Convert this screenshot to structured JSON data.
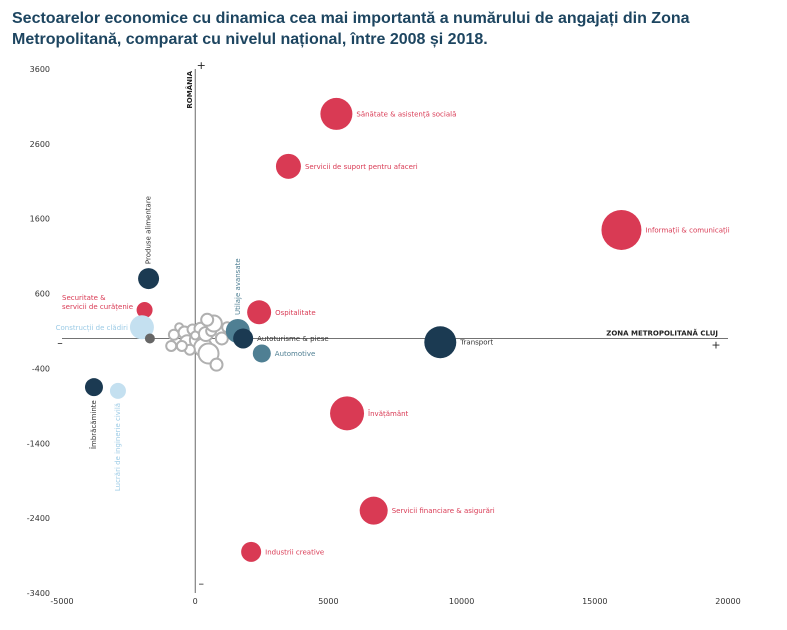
{
  "title": "Sectoarelor economice cu dinamica cea mai importantă a numărului de angajați din Zona Metropolitană, comparat cu nivelul național, între 2008 și 2018.",
  "colors": {
    "red": "#d93a54",
    "navy": "#1b3a52",
    "teal": "#4f7f93",
    "light": "#c4e0f0",
    "gray": "#b0b0b0",
    "darkgray": "#666666"
  },
  "chart_data": {
    "type": "scatter",
    "title": "Sectoarelor economice cu dinamica cea mai importantă a numărului de angajați din Zona Metropolitană, comparat cu nivelul național, între 2008 și 2018.",
    "xlabel": "ZONA METROPOLITANĂ CLUJ",
    "ylabel": "ROMÂNIA",
    "xlim": [
      -5000,
      20000
    ],
    "ylim": [
      -3400,
      3600
    ],
    "x_ticks": [
      "-5000",
      "0",
      "5000",
      "10000",
      "15000",
      "20000"
    ],
    "y_ticks": [
      "3600",
      "2600",
      "1600",
      "600",
      "-400",
      "-1400",
      "-2400",
      "-3400"
    ],
    "x_signs": [
      "–",
      "+"
    ],
    "y_signs": [
      "+",
      "–"
    ],
    "grid": false,
    "points": [
      {
        "label": "Sănătate & asistență socială",
        "x": 5300,
        "y": 3000,
        "size": 16,
        "color": "red",
        "label_side": "right",
        "vertical": false
      },
      {
        "label": "Servicii de suport pentru afaceri",
        "x": 3500,
        "y": 2300,
        "size": 12.5,
        "color": "red",
        "label_side": "right",
        "vertical": false
      },
      {
        "label": "Informații & comunicații",
        "x": 16000,
        "y": 1450,
        "size": 20,
        "color": "red",
        "label_side": "right",
        "vertical": false
      },
      {
        "label": "Produse alimentare",
        "x": -1750,
        "y": 800,
        "size": 10.5,
        "color": "navy",
        "label_side": "top",
        "vertical": true
      },
      {
        "label": "Securitate & servicii de curățenie",
        "x": -1900,
        "y": 380,
        "size": 8,
        "color": "red",
        "label_side": "left",
        "vertical": false
      },
      {
        "label": "Construcții de clădiri",
        "x": -2000,
        "y": 150,
        "size": 12,
        "color": "light",
        "label_side": "left",
        "vertical": false
      },
      {
        "label": "",
        "x": -1700,
        "y": 0,
        "size": 5,
        "color": "darkgray",
        "label_side": "none",
        "vertical": false
      },
      {
        "label": "Ospitalitate",
        "x": 2400,
        "y": 350,
        "size": 12,
        "color": "red",
        "label_side": "right",
        "vertical": false
      },
      {
        "label": "Utilaje avansate",
        "x": 1600,
        "y": 100,
        "size": 12,
        "color": "teal",
        "label_side": "top",
        "vertical": true
      },
      {
        "label": "Autoturisme & piese",
        "x": 1800,
        "y": 0,
        "size": 10,
        "color": "navy",
        "label_side": "right",
        "vertical": false
      },
      {
        "label": "Automotive",
        "x": 2500,
        "y": -200,
        "size": 9,
        "color": "teal",
        "label_side": "right",
        "vertical": false
      },
      {
        "label": "Transport",
        "x": 9200,
        "y": -50,
        "size": 16,
        "color": "navy",
        "label_side": "right",
        "vertical": false
      },
      {
        "label": "Învățământ",
        "x": 5700,
        "y": -1000,
        "size": 17,
        "color": "red",
        "label_side": "right",
        "vertical": false
      },
      {
        "label": "Servicii financiare & asigurări",
        "x": 6700,
        "y": -2300,
        "size": 14,
        "color": "red",
        "label_side": "right",
        "vertical": false
      },
      {
        "label": "Industrii creative",
        "x": 2100,
        "y": -2850,
        "size": 10,
        "color": "red",
        "label_side": "right",
        "vertical": false
      },
      {
        "label": "Îmbrăcăminte",
        "x": -3800,
        "y": -650,
        "size": 9,
        "color": "navy",
        "label_side": "bottom",
        "vertical": true
      },
      {
        "label": "Lucrări de inginerie civilă",
        "x": -2900,
        "y": -700,
        "size": 8,
        "color": "light",
        "label_side": "bottom",
        "vertical": true
      }
    ],
    "background_cluster": [
      {
        "x": -800,
        "y": 50,
        "size": 5
      },
      {
        "x": -600,
        "y": 150,
        "size": 4
      },
      {
        "x": -400,
        "y": 80,
        "size": 6
      },
      {
        "x": -300,
        "y": -50,
        "size": 7
      },
      {
        "x": -100,
        "y": 120,
        "size": 5
      },
      {
        "x": 100,
        "y": -20,
        "size": 8
      },
      {
        "x": 200,
        "y": 130,
        "size": 6
      },
      {
        "x": 300,
        "y": -120,
        "size": 9
      },
      {
        "x": 400,
        "y": 60,
        "size": 7
      },
      {
        "x": 500,
        "y": -200,
        "size": 10
      },
      {
        "x": 600,
        "y": 100,
        "size": 5
      },
      {
        "x": 700,
        "y": 200,
        "size": 8
      },
      {
        "x": 800,
        "y": -350,
        "size": 6
      },
      {
        "x": -200,
        "y": -150,
        "size": 5
      },
      {
        "x": 0,
        "y": 40,
        "size": 4
      },
      {
        "x": -500,
        "y": -100,
        "size": 5
      },
      {
        "x": 1000,
        "y": 0,
        "size": 6
      },
      {
        "x": 1200,
        "y": 150,
        "size": 5
      },
      {
        "x": -900,
        "y": -100,
        "size": 5
      },
      {
        "x": 450,
        "y": 250,
        "size": 6
      }
    ]
  }
}
